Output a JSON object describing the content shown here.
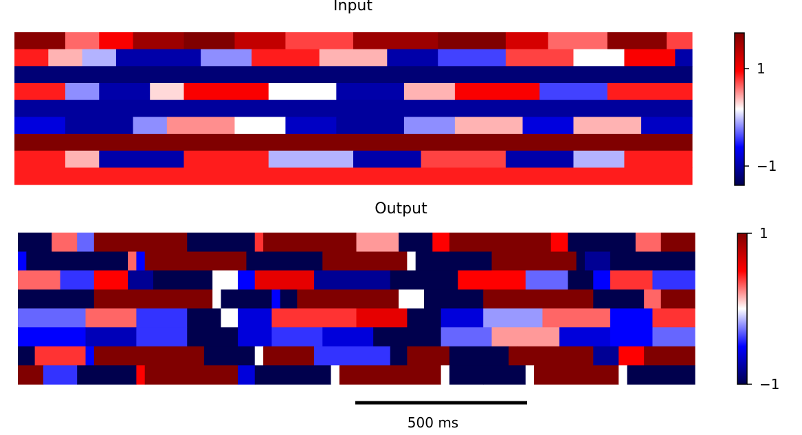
{
  "panels": [
    {
      "title": "Input",
      "colorbar": {
        "ticks": [
          1,
          -1
        ],
        "tick_labels": [
          "1",
          "−1"
        ],
        "vmin": -1.35,
        "vmax": 1.35
      }
    },
    {
      "title": "Output",
      "colorbar": {
        "ticks": [
          1,
          -1
        ],
        "tick_labels": [
          "1",
          "−1"
        ],
        "vmin": -1,
        "vmax": 1
      }
    }
  ],
  "scalebar": {
    "label": "500 ms",
    "duration_ms": 500
  },
  "colormap": "seismic",
  "chart_data": [
    {
      "type": "heatmap",
      "title": "Input",
      "n_rows": 9,
      "n_cols": 80,
      "rows": [
        {
          "segments": [
            [
              0,
              6,
              1.3
            ],
            [
              6,
              10,
              0.4
            ],
            [
              10,
              14,
              0.7
            ],
            [
              14,
              20,
              1.2
            ],
            [
              20,
              26,
              1.35
            ],
            [
              26,
              32,
              1.0
            ],
            [
              32,
              40,
              0.5
            ],
            [
              40,
              50,
              1.2
            ],
            [
              50,
              58,
              1.35
            ],
            [
              58,
              63,
              0.9
            ],
            [
              63,
              70,
              0.4
            ],
            [
              70,
              77,
              1.3
            ],
            [
              77,
              80,
              0.5
            ]
          ]
        },
        {
          "segments": [
            [
              0,
              4,
              0.6
            ],
            [
              4,
              8,
              0.2
            ],
            [
              8,
              12,
              -0.2
            ],
            [
              12,
              22,
              -1.0
            ],
            [
              22,
              28,
              -0.3
            ],
            [
              28,
              36,
              0.6
            ],
            [
              36,
              44,
              0.2
            ],
            [
              44,
              50,
              -1.0
            ],
            [
              50,
              58,
              -0.5
            ],
            [
              58,
              66,
              0.5
            ],
            [
              66,
              72,
              0.0
            ],
            [
              72,
              78,
              0.7
            ],
            [
              78,
              80,
              -1.0
            ]
          ]
        },
        {
          "segments": [
            [
              0,
              80,
              -1.2
            ]
          ]
        },
        {
          "segments": [
            [
              0,
              6,
              0.6
            ],
            [
              6,
              10,
              -0.3
            ],
            [
              10,
              16,
              -1.0
            ],
            [
              16,
              20,
              0.1
            ],
            [
              20,
              30,
              0.7
            ],
            [
              30,
              38,
              0.0
            ],
            [
              38,
              46,
              -1.0
            ],
            [
              46,
              52,
              0.2
            ],
            [
              52,
              62,
              0.7
            ],
            [
              62,
              70,
              -0.5
            ],
            [
              70,
              80,
              0.6
            ]
          ]
        },
        {
          "segments": [
            [
              0,
              80,
              -1.05
            ]
          ]
        },
        {
          "segments": [
            [
              0,
              6,
              -0.8
            ],
            [
              6,
              14,
              -1.05
            ],
            [
              14,
              18,
              -0.3
            ],
            [
              18,
              26,
              0.3
            ],
            [
              26,
              32,
              0.0
            ],
            [
              32,
              38,
              -0.9
            ],
            [
              38,
              46,
              -1.05
            ],
            [
              46,
              52,
              -0.3
            ],
            [
              52,
              60,
              0.2
            ],
            [
              60,
              66,
              -0.8
            ],
            [
              66,
              74,
              0.2
            ],
            [
              74,
              80,
              -0.9
            ]
          ]
        },
        {
          "segments": [
            [
              0,
              80,
              1.35
            ]
          ]
        },
        {
          "segments": [
            [
              0,
              6,
              0.6
            ],
            [
              6,
              10,
              0.2
            ],
            [
              10,
              20,
              -1.0
            ],
            [
              20,
              30,
              0.6
            ],
            [
              30,
              40,
              -0.2
            ],
            [
              40,
              48,
              -1.0
            ],
            [
              48,
              58,
              0.5
            ],
            [
              58,
              66,
              -1.0
            ],
            [
              66,
              72,
              -0.2
            ],
            [
              72,
              80,
              0.6
            ]
          ]
        },
        {
          "segments": [
            [
              0,
              80,
              0.6
            ]
          ]
        }
      ]
    },
    {
      "type": "heatmap",
      "title": "Output",
      "n_rows": 8,
      "n_cols": 80,
      "rows": [
        {
          "segments": [
            [
              0,
              4,
              -1
            ],
            [
              4,
              7,
              0.3
            ],
            [
              7,
              9,
              -0.3
            ],
            [
              9,
              20,
              1
            ],
            [
              20,
              28,
              -1
            ],
            [
              28,
              29,
              0.4
            ],
            [
              29,
              40,
              1
            ],
            [
              40,
              45,
              0.2
            ],
            [
              45,
              49,
              -1
            ],
            [
              49,
              51,
              0.5
            ],
            [
              51,
              55,
              1
            ],
            [
              55,
              63,
              1
            ],
            [
              63,
              65,
              0.5
            ],
            [
              65,
              73,
              -1
            ],
            [
              73,
              76,
              0.3
            ],
            [
              76,
              80,
              1
            ]
          ]
        },
        {
          "segments": [
            [
              0,
              1,
              -0.5
            ],
            [
              1,
              4,
              -1
            ],
            [
              4,
              13,
              -1
            ],
            [
              13,
              14,
              0.3
            ],
            [
              14,
              15,
              -0.5
            ],
            [
              15,
              27,
              1
            ],
            [
              27,
              36,
              -1
            ],
            [
              36,
              37,
              1
            ],
            [
              37,
              46,
              1
            ],
            [
              46,
              47,
              0.0
            ],
            [
              47,
              48,
              -1
            ],
            [
              48,
              56,
              -1
            ],
            [
              56,
              57,
              1
            ],
            [
              57,
              66,
              1
            ],
            [
              66,
              67,
              -1
            ],
            [
              67,
              70,
              -0.8
            ],
            [
              70,
              80,
              -1
            ]
          ]
        },
        {
          "segments": [
            [
              0,
              5,
              0.3
            ],
            [
              5,
              9,
              -0.4
            ],
            [
              9,
              13,
              0.5
            ],
            [
              13,
              16,
              -0.8
            ],
            [
              16,
              23,
              -1
            ],
            [
              23,
              26,
              0.0
            ],
            [
              26,
              28,
              -0.5
            ],
            [
              28,
              35,
              0.6
            ],
            [
              35,
              44,
              -0.8
            ],
            [
              44,
              52,
              -1
            ],
            [
              52,
              60,
              0.5
            ],
            [
              60,
              65,
              -0.3
            ],
            [
              65,
              68,
              -1
            ],
            [
              68,
              70,
              -0.5
            ],
            [
              70,
              75,
              0.4
            ],
            [
              75,
              80,
              -0.4
            ]
          ]
        },
        {
          "segments": [
            [
              0,
              9,
              -1
            ],
            [
              9,
              23,
              1
            ],
            [
              23,
              24,
              0.0
            ],
            [
              24,
              30,
              -1
            ],
            [
              30,
              31,
              -0.5
            ],
            [
              31,
              33,
              -1
            ],
            [
              33,
              45,
              1
            ],
            [
              45,
              48,
              0.0
            ],
            [
              48,
              55,
              -1
            ],
            [
              55,
              68,
              1
            ],
            [
              68,
              74,
              -1
            ],
            [
              74,
              76,
              0.3
            ],
            [
              76,
              80,
              1
            ]
          ]
        },
        {
          "segments": [
            [
              0,
              8,
              -0.3
            ],
            [
              8,
              14,
              0.3
            ],
            [
              14,
              20,
              -0.4
            ],
            [
              20,
              24,
              -1
            ],
            [
              24,
              26,
              0.0
            ],
            [
              26,
              30,
              -0.6
            ],
            [
              30,
              40,
              0.4
            ],
            [
              40,
              46,
              0.6
            ],
            [
              46,
              50,
              -1
            ],
            [
              50,
              55,
              -0.6
            ],
            [
              55,
              62,
              -0.2
            ],
            [
              62,
              70,
              0.3
            ],
            [
              70,
              75,
              -0.5
            ],
            [
              75,
              80,
              0.4
            ]
          ]
        },
        {
          "segments": [
            [
              0,
              8,
              -0.5
            ],
            [
              8,
              14,
              -0.7
            ],
            [
              14,
              20,
              -0.4
            ],
            [
              20,
              26,
              -1
            ],
            [
              26,
              30,
              -0.6
            ],
            [
              30,
              36,
              -0.4
            ],
            [
              36,
              42,
              -0.6
            ],
            [
              42,
              50,
              -1
            ],
            [
              50,
              56,
              -0.3
            ],
            [
              56,
              64,
              0.2
            ],
            [
              64,
              70,
              -0.6
            ],
            [
              70,
              75,
              -0.5
            ],
            [
              75,
              80,
              -0.3
            ]
          ]
        },
        {
          "segments": [
            [
              0,
              2,
              -1
            ],
            [
              2,
              8,
              0.4
            ],
            [
              8,
              9,
              -0.5
            ],
            [
              9,
              22,
              1
            ],
            [
              22,
              28,
              -1
            ],
            [
              28,
              29,
              0.0
            ],
            [
              29,
              35,
              1
            ],
            [
              35,
              44,
              -0.4
            ],
            [
              44,
              46,
              -1
            ],
            [
              46,
              51,
              1
            ],
            [
              51,
              58,
              -1
            ],
            [
              58,
              59,
              1
            ],
            [
              59,
              68,
              1
            ],
            [
              68,
              71,
              -0.8
            ],
            [
              71,
              74,
              0.5
            ],
            [
              74,
              80,
              1
            ]
          ]
        },
        {
          "segments": [
            [
              0,
              3,
              1
            ],
            [
              3,
              7,
              -0.4
            ],
            [
              7,
              14,
              -1
            ],
            [
              14,
              15,
              0.5
            ],
            [
              15,
              26,
              1
            ],
            [
              26,
              28,
              -0.6
            ],
            [
              28,
              37,
              -1
            ],
            [
              37,
              38,
              0.0
            ],
            [
              38,
              50,
              1
            ],
            [
              50,
              51,
              0.0
            ],
            [
              51,
              55,
              -1
            ],
            [
              55,
              60,
              -1
            ],
            [
              60,
              61,
              0.0
            ],
            [
              61,
              71,
              1
            ],
            [
              71,
              72,
              0.0
            ],
            [
              72,
              80,
              -1
            ]
          ]
        }
      ]
    }
  ]
}
